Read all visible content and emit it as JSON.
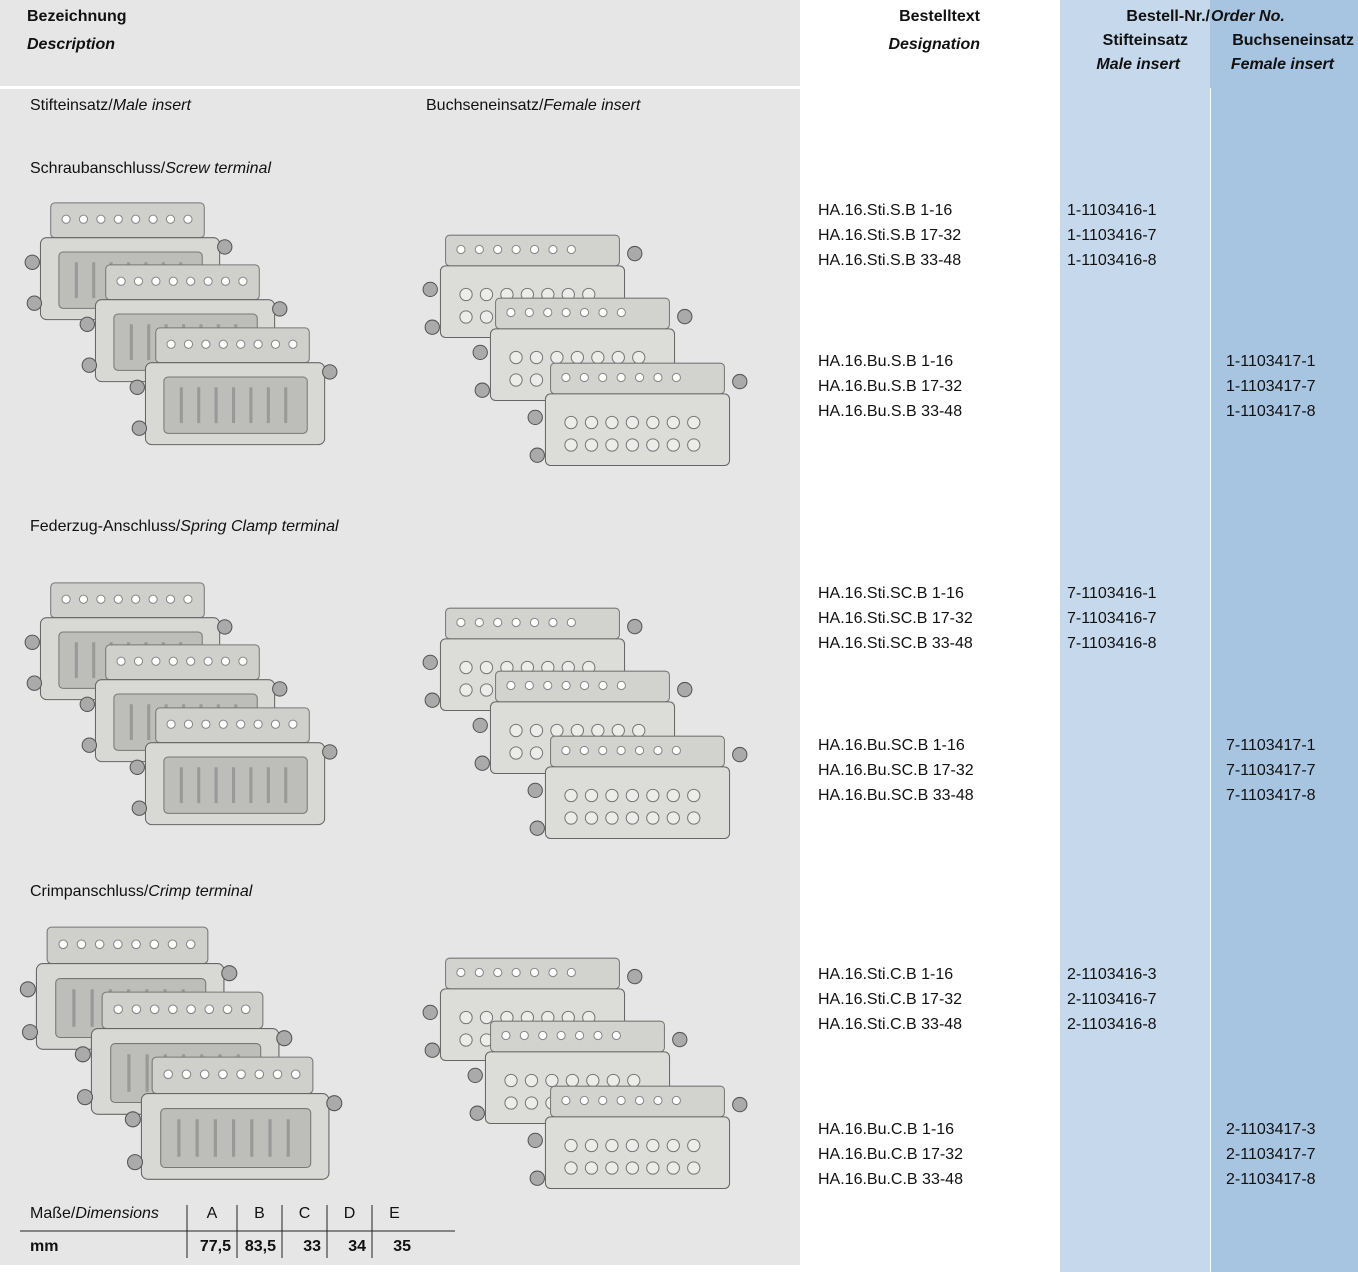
{
  "header": {
    "description": {
      "de": "Bezeichnung",
      "en": "Description"
    },
    "designation": {
      "de": "Bestelltext",
      "en": "Designation"
    },
    "order_no": {
      "de": "Bestell-Nr./",
      "en": "Order No."
    },
    "male": {
      "de": "Stifteinsatz",
      "en": "Male insert"
    },
    "female": {
      "de": "Buchseneinsatz",
      "en": "Female insert"
    }
  },
  "columns": {
    "male": {
      "de": "Stifteinsatz/",
      "en": "Male insert"
    },
    "female": {
      "de": "Buchseneinsatz/",
      "en": "Female insert"
    }
  },
  "sections": [
    {
      "title": {
        "de": "Schraubanschluss/",
        "en": "Screw terminal"
      },
      "male_rows": [
        {
          "designation": "HA.16.Sti.S.B 1-16",
          "order_no": "1-1103416-1"
        },
        {
          "designation": "HA.16.Sti.S.B 17-32",
          "order_no": "1-1103416-7"
        },
        {
          "designation": "HA.16.Sti.S.B 33-48",
          "order_no": "1-1103416-8"
        }
      ],
      "female_rows": [
        {
          "designation": "HA.16.Bu.S.B 1-16",
          "order_no": "1-1103417-1"
        },
        {
          "designation": "HA.16.Bu.S.B 17-32",
          "order_no": "1-1103417-7"
        },
        {
          "designation": "HA.16.Bu.S.B 33-48",
          "order_no": "1-1103417-8"
        }
      ]
    },
    {
      "title": {
        "de": "Federzug-Anschluss/",
        "en": "Spring Clamp terminal"
      },
      "male_rows": [
        {
          "designation": "HA.16.Sti.SC.B 1-16",
          "order_no": "7-1103416-1"
        },
        {
          "designation": "HA.16.Sti.SC.B 17-32",
          "order_no": "7-1103416-7"
        },
        {
          "designation": "HA.16.Sti.SC.B 33-48",
          "order_no": "7-1103416-8"
        }
      ],
      "female_rows": [
        {
          "designation": "HA.16.Bu.SC.B 1-16",
          "order_no": "7-1103417-1"
        },
        {
          "designation": "HA.16.Bu.SC.B 17-32",
          "order_no": "7-1103417-7"
        },
        {
          "designation": "HA.16.Bu.SC.B 33-48",
          "order_no": "7-1103417-8"
        }
      ]
    },
    {
      "title": {
        "de": "Crimpanschluss/",
        "en": "Crimp terminal"
      },
      "male_rows": [
        {
          "designation": "HA.16.Sti.C.B 1-16",
          "order_no": "2-1103416-3"
        },
        {
          "designation": "HA.16.Sti.C.B 17-32",
          "order_no": "2-1103416-7"
        },
        {
          "designation": "HA.16.Sti.C.B 33-48",
          "order_no": "2-1103416-8"
        }
      ],
      "female_rows": [
        {
          "designation": "HA.16.Bu.C.B 1-16",
          "order_no": "2-1103417-3"
        },
        {
          "designation": "HA.16.Bu.C.B 17-32",
          "order_no": "2-1103417-7"
        },
        {
          "designation": "HA.16.Bu.C.B 33-48",
          "order_no": "2-1103417-8"
        }
      ]
    }
  ],
  "dimensions": {
    "label": {
      "de": "Maße/",
      "en": "Dimensions"
    },
    "unit": "mm",
    "columns": [
      "A",
      "B",
      "C",
      "D",
      "E"
    ],
    "values": [
      "77,5",
      "83,5",
      "33",
      "34",
      "35"
    ]
  }
}
